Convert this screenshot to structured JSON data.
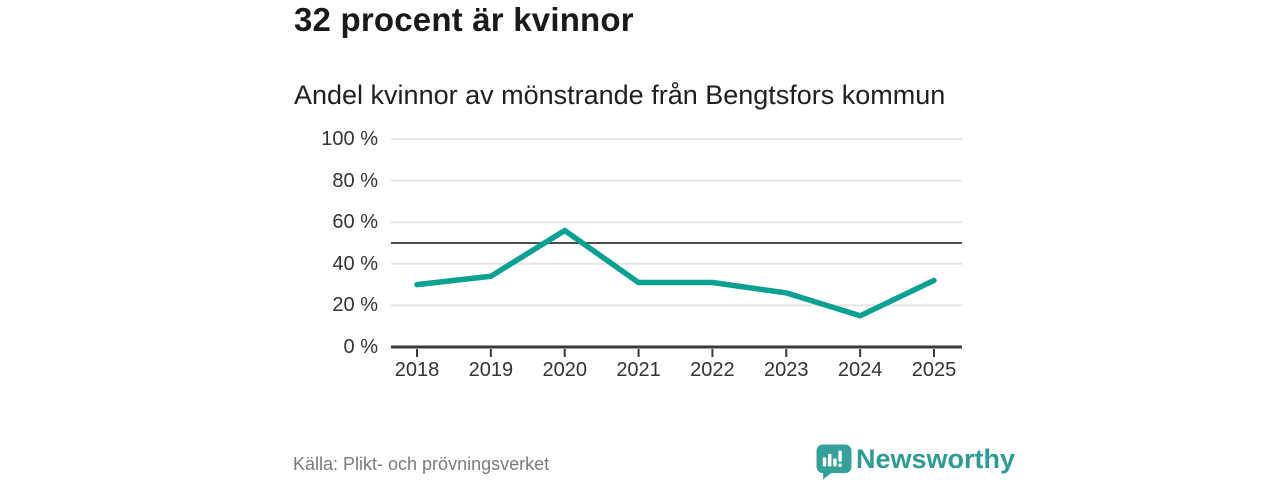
{
  "header": {
    "title": "32 procent är kvinnor",
    "subtitle": "Andel kvinnor av mönstrande från Bengtsfors kommun"
  },
  "chart_data": {
    "type": "line",
    "title": "32 procent är kvinnor",
    "subtitle": "Andel kvinnor av mönstrande från Bengtsfors kommun",
    "x": [
      2018,
      2019,
      2020,
      2021,
      2022,
      2023,
      2024,
      2025
    ],
    "xtick_labels": [
      "2018",
      "2019",
      "2020",
      "2021",
      "2022",
      "2023",
      "2024",
      "2025"
    ],
    "series": [
      {
        "name": "Andel kvinnor av mönstrande",
        "values": [
          30,
          34,
          56,
          31,
          31,
          26,
          15,
          32
        ]
      }
    ],
    "unit": "%",
    "ylim": [
      0,
      100
    ],
    "yticks": [
      0,
      20,
      40,
      60,
      80,
      100
    ],
    "ytick_labels": [
      "0 %",
      "20 %",
      "40 %",
      "60 %",
      "80 %",
      "100 %"
    ],
    "reference_line": 50,
    "grid": true,
    "legend": "none",
    "line_color": "#0aa092",
    "reference_line_color": "#4e4e4e",
    "grid_color": "#e4e4e4",
    "axis_color": "#3a3a3a"
  },
  "footer": {
    "source": "Källa: Plikt- och prövningsverket",
    "brand": "Newsworthy",
    "brand_color": "#2d9a96",
    "brand_icon": "speech-bubble-bar-chart",
    "brand_icon_color": "#35a09a"
  }
}
